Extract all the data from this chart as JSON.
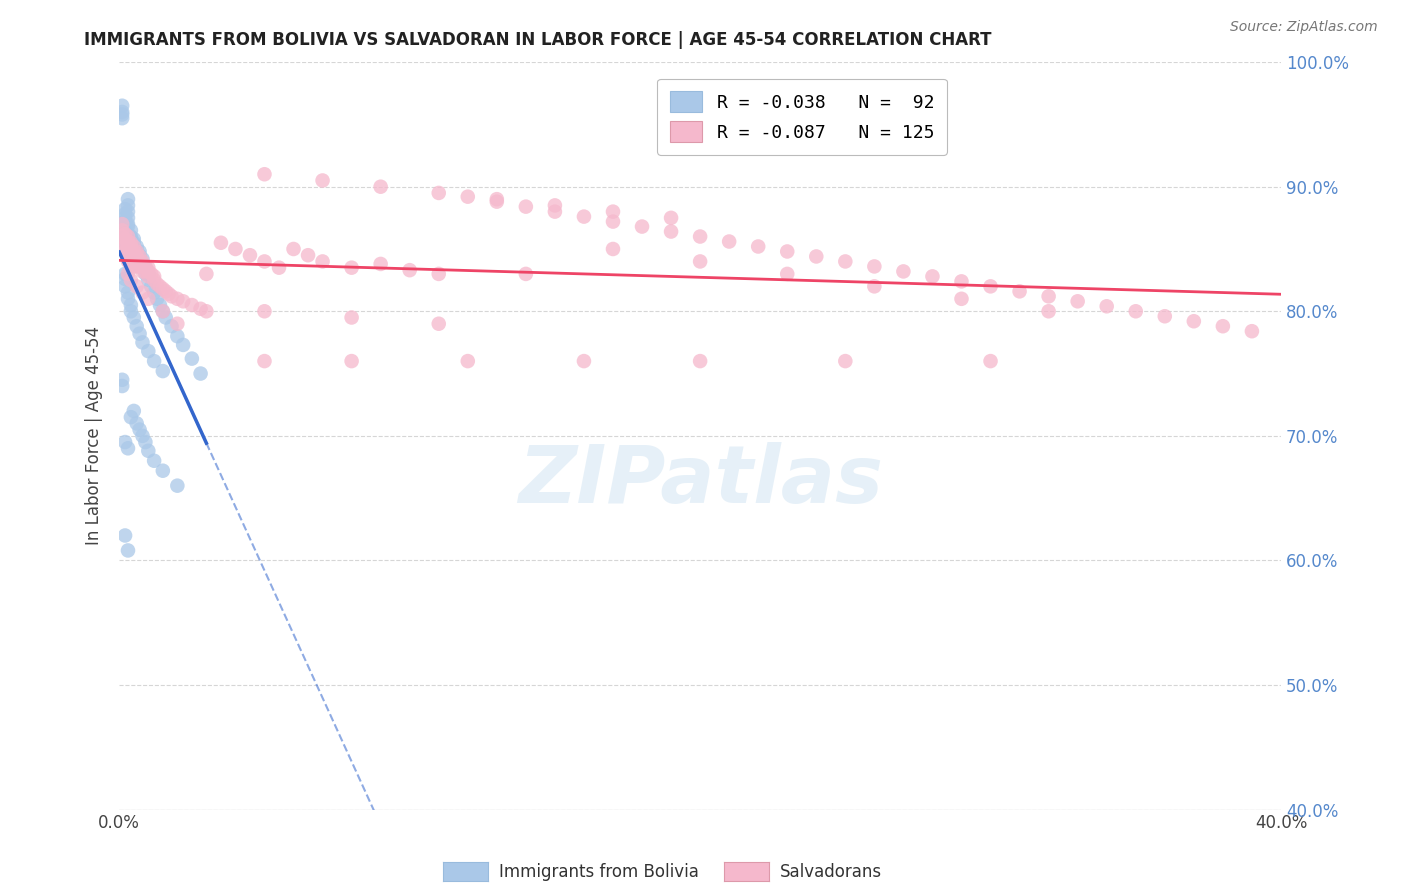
{
  "title": "IMMIGRANTS FROM BOLIVIA VS SALVADORAN IN LABOR FORCE | AGE 45-54 CORRELATION CHART",
  "source": "Source: ZipAtlas.com",
  "ylabel_left": "In Labor Force | Age 45-54",
  "x_min": 0.0,
  "x_max": 0.4,
  "y_min": 0.4,
  "y_max": 1.0,
  "bolivia_R": -0.038,
  "bolivia_N": 92,
  "salvador_R": -0.087,
  "salvador_N": 125,
  "bolivia_color": "#aac8e8",
  "salvador_color": "#f5b8cc",
  "bolivia_line_color": "#3366cc",
  "salvador_line_color": "#ee4466",
  "bolivia_line_dash_color": "#88aadd",
  "legend_label_bolivia": "Immigrants from Bolivia",
  "legend_label_salvador": "Salvadorans",
  "watermark": "ZIPatlas",
  "background_color": "#ffffff",
  "grid_color": "#cccccc",
  "right_axis_color": "#5588cc",
  "bolivia_x": [
    0.001,
    0.001,
    0.001,
    0.001,
    0.002,
    0.002,
    0.002,
    0.002,
    0.002,
    0.002,
    0.002,
    0.002,
    0.002,
    0.003,
    0.003,
    0.003,
    0.003,
    0.003,
    0.003,
    0.003,
    0.003,
    0.003,
    0.003,
    0.003,
    0.003,
    0.004,
    0.004,
    0.004,
    0.004,
    0.004,
    0.004,
    0.004,
    0.005,
    0.005,
    0.005,
    0.005,
    0.005,
    0.006,
    0.006,
    0.006,
    0.006,
    0.007,
    0.007,
    0.007,
    0.007,
    0.008,
    0.008,
    0.009,
    0.009,
    0.01,
    0.01,
    0.011,
    0.012,
    0.013,
    0.014,
    0.015,
    0.016,
    0.018,
    0.02,
    0.022,
    0.025,
    0.028,
    0.001,
    0.001,
    0.002,
    0.002,
    0.002,
    0.003,
    0.003,
    0.004,
    0.004,
    0.005,
    0.006,
    0.007,
    0.008,
    0.01,
    0.012,
    0.015,
    0.002,
    0.003,
    0.004,
    0.005,
    0.006,
    0.007,
    0.008,
    0.009,
    0.01,
    0.012,
    0.015,
    0.02,
    0.002,
    0.003
  ],
  "bolivia_y": [
    0.96,
    0.965,
    0.955,
    0.958,
    0.875,
    0.882,
    0.87,
    0.878,
    0.865,
    0.872,
    0.869,
    0.86,
    0.855,
    0.89,
    0.885,
    0.88,
    0.875,
    0.87,
    0.868,
    0.862,
    0.858,
    0.855,
    0.85,
    0.848,
    0.845,
    0.865,
    0.86,
    0.858,
    0.855,
    0.85,
    0.845,
    0.842,
    0.858,
    0.855,
    0.85,
    0.845,
    0.84,
    0.852,
    0.848,
    0.845,
    0.84,
    0.848,
    0.845,
    0.84,
    0.836,
    0.842,
    0.838,
    0.835,
    0.83,
    0.83,
    0.825,
    0.82,
    0.815,
    0.81,
    0.805,
    0.8,
    0.795,
    0.788,
    0.78,
    0.773,
    0.762,
    0.75,
    0.745,
    0.74,
    0.83,
    0.826,
    0.82,
    0.815,
    0.81,
    0.805,
    0.8,
    0.795,
    0.788,
    0.782,
    0.775,
    0.768,
    0.76,
    0.752,
    0.695,
    0.69,
    0.715,
    0.72,
    0.71,
    0.705,
    0.7,
    0.695,
    0.688,
    0.68,
    0.672,
    0.66,
    0.62,
    0.608
  ],
  "salvador_x": [
    0.001,
    0.001,
    0.001,
    0.002,
    0.002,
    0.002,
    0.002,
    0.002,
    0.003,
    0.003,
    0.003,
    0.003,
    0.003,
    0.003,
    0.004,
    0.004,
    0.004,
    0.004,
    0.005,
    0.005,
    0.005,
    0.005,
    0.005,
    0.006,
    0.006,
    0.006,
    0.006,
    0.007,
    0.007,
    0.007,
    0.008,
    0.008,
    0.008,
    0.009,
    0.009,
    0.01,
    0.01,
    0.01,
    0.011,
    0.012,
    0.012,
    0.013,
    0.014,
    0.015,
    0.016,
    0.017,
    0.018,
    0.02,
    0.022,
    0.025,
    0.028,
    0.03,
    0.035,
    0.04,
    0.045,
    0.05,
    0.055,
    0.06,
    0.065,
    0.07,
    0.08,
    0.09,
    0.1,
    0.11,
    0.12,
    0.13,
    0.14,
    0.15,
    0.16,
    0.17,
    0.18,
    0.19,
    0.2,
    0.21,
    0.22,
    0.23,
    0.24,
    0.25,
    0.26,
    0.27,
    0.28,
    0.29,
    0.3,
    0.31,
    0.32,
    0.33,
    0.34,
    0.35,
    0.36,
    0.37,
    0.38,
    0.39,
    0.05,
    0.07,
    0.09,
    0.11,
    0.13,
    0.15,
    0.17,
    0.19,
    0.05,
    0.08,
    0.11,
    0.14,
    0.17,
    0.2,
    0.23,
    0.26,
    0.29,
    0.32,
    0.003,
    0.004,
    0.006,
    0.008,
    0.01,
    0.015,
    0.02,
    0.03,
    0.05,
    0.08,
    0.12,
    0.16,
    0.2,
    0.25,
    0.3
  ],
  "salvador_y": [
    0.87,
    0.865,
    0.86,
    0.862,
    0.858,
    0.855,
    0.852,
    0.848,
    0.86,
    0.856,
    0.852,
    0.848,
    0.844,
    0.84,
    0.855,
    0.852,
    0.848,
    0.844,
    0.852,
    0.848,
    0.844,
    0.84,
    0.836,
    0.848,
    0.844,
    0.84,
    0.836,
    0.844,
    0.84,
    0.836,
    0.84,
    0.836,
    0.832,
    0.836,
    0.832,
    0.835,
    0.832,
    0.828,
    0.83,
    0.828,
    0.825,
    0.822,
    0.82,
    0.818,
    0.816,
    0.814,
    0.812,
    0.81,
    0.808,
    0.805,
    0.802,
    0.8,
    0.855,
    0.85,
    0.845,
    0.84,
    0.835,
    0.85,
    0.845,
    0.84,
    0.835,
    0.838,
    0.833,
    0.83,
    0.892,
    0.888,
    0.884,
    0.88,
    0.876,
    0.872,
    0.868,
    0.864,
    0.86,
    0.856,
    0.852,
    0.848,
    0.844,
    0.84,
    0.836,
    0.832,
    0.828,
    0.824,
    0.82,
    0.816,
    0.812,
    0.808,
    0.804,
    0.8,
    0.796,
    0.792,
    0.788,
    0.784,
    0.91,
    0.905,
    0.9,
    0.895,
    0.89,
    0.885,
    0.88,
    0.875,
    0.8,
    0.795,
    0.79,
    0.83,
    0.85,
    0.84,
    0.83,
    0.82,
    0.81,
    0.8,
    0.83,
    0.825,
    0.82,
    0.815,
    0.81,
    0.8,
    0.79,
    0.83,
    0.76,
    0.76,
    0.76,
    0.76,
    0.76,
    0.76,
    0.76
  ]
}
